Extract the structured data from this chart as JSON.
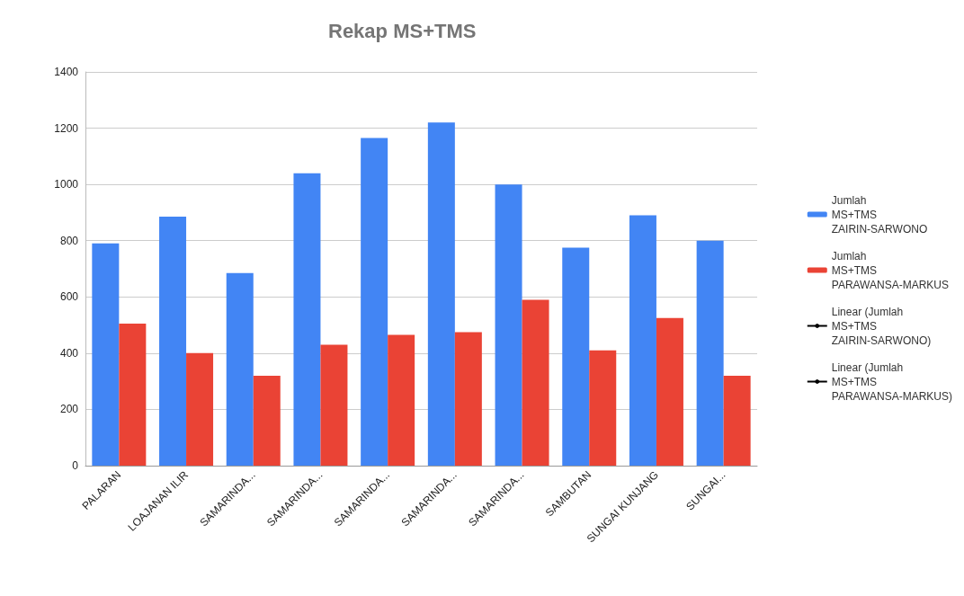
{
  "chart_data": {
    "type": "bar",
    "title": "Rekap MS+TMS",
    "categories": [
      "PALARAN",
      "LOAJANAN ILIR",
      "SAMARINDA...",
      "SAMARINDA...",
      "SAMARINDA...",
      "SAMARINDA...",
      "SAMARINDA...",
      "SAMBUTAN",
      "SUNGAI KUNJANG",
      "SUNGAI..."
    ],
    "series": [
      {
        "name": "Jumlah\nMS+TMS\nZAIRIN-SARWONO",
        "color": "#4285f4",
        "values": [
          790,
          885,
          685,
          1040,
          1165,
          1220,
          1000,
          775,
          890,
          800
        ]
      },
      {
        "name": "Jumlah\nMS+TMS\nPARAWANSA-MARKUS",
        "color": "#ea4335",
        "values": [
          505,
          400,
          320,
          430,
          465,
          475,
          590,
          410,
          525,
          320
        ]
      },
      {
        "name": "Linear (Jumlah\nMS+TMS\nZAIRIN-SARWONO)",
        "color": "#000000",
        "type": "line",
        "values": [
          null,
          null,
          null,
          null,
          null,
          null,
          null,
          null,
          null,
          null
        ]
      },
      {
        "name": "Linear (Jumlah\nMS+TMS\nPARAWANSA-MARKUS)",
        "color": "#000000",
        "type": "line",
        "values": [
          null,
          null,
          null,
          null,
          null,
          null,
          null,
          null,
          null,
          null
        ]
      }
    ],
    "ylim": [
      0,
      1400
    ],
    "yticks": [
      0,
      200,
      400,
      600,
      800,
      1000,
      1200,
      1400
    ],
    "grid": "y",
    "legend": "right"
  }
}
